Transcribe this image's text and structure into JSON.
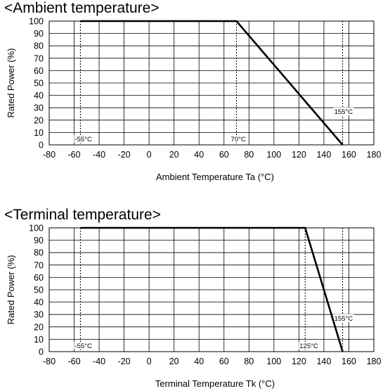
{
  "charts": [
    {
      "heading": "<Ambient temperature>",
      "chart_data": {
        "type": "line",
        "title": "<Ambient temperature>",
        "xlabel": "Ambient Temperature Ta (°C)",
        "ylabel": "Rated Power (%)",
        "xlim": [
          -80,
          180
        ],
        "ylim": [
          0,
          100
        ],
        "xticks": [
          "-80",
          "-60",
          "-40",
          "-20",
          "0",
          "20",
          "40",
          "60",
          "80",
          "100",
          "120",
          "140",
          "160",
          "180"
        ],
        "yticks": [
          "0",
          "10",
          "20",
          "30",
          "40",
          "50",
          "60",
          "70",
          "80",
          "90",
          "100"
        ],
        "grid": true,
        "series": [
          {
            "x": [
              -55,
              70,
              155
            ],
            "y": [
              100,
              100,
              0
            ]
          }
        ],
        "reference_lines": [
          {
            "x": -55,
            "label": "-55°C"
          },
          {
            "x": 70,
            "label": "70°C"
          },
          {
            "x": 155,
            "label": "155°C"
          }
        ]
      }
    },
    {
      "heading": "<Terminal temperature>",
      "chart_data": {
        "type": "line",
        "title": "<Terminal temperature>",
        "xlabel": "Terminal Temperature Tk (°C)",
        "ylabel": "Rated Power (%)",
        "xlim": [
          -80,
          180
        ],
        "ylim": [
          0,
          100
        ],
        "xticks": [
          "-80",
          "-60",
          "-40",
          "-20",
          "0",
          "20",
          "40",
          "60",
          "80",
          "100",
          "120",
          "140",
          "160",
          "180"
        ],
        "yticks": [
          "0",
          "10",
          "20",
          "30",
          "40",
          "50",
          "60",
          "70",
          "80",
          "90",
          "100"
        ],
        "grid": true,
        "series": [
          {
            "x": [
              -55,
              125,
              155
            ],
            "y": [
              100,
              100,
              0
            ]
          }
        ],
        "reference_lines": [
          {
            "x": -55,
            "label": "-55°C"
          },
          {
            "x": 125,
            "label": "125°C"
          },
          {
            "x": 155,
            "label": "155°C"
          }
        ]
      }
    }
  ]
}
